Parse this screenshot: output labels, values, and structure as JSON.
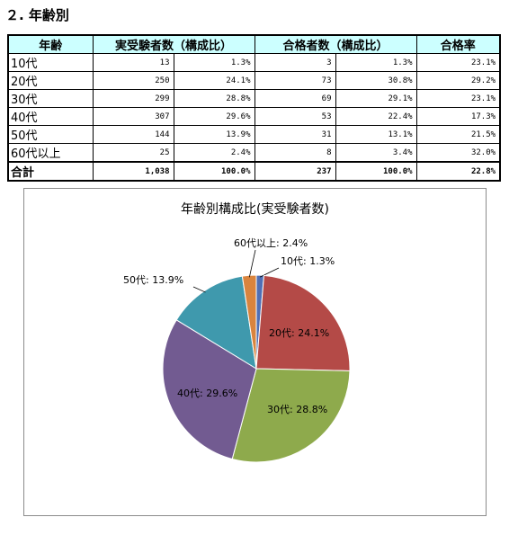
{
  "section_title": "２. 年齢別",
  "table": {
    "headers": [
      "年齢",
      "実受験者数（構成比）",
      "合格者数（構成比）",
      "合格率"
    ],
    "rows": [
      {
        "age": "10代",
        "examinees": "13",
        "examinees_ratio": "1.3%",
        "passers": "3",
        "passers_ratio": "1.3%",
        "pass_rate": "23.1%"
      },
      {
        "age": "20代",
        "examinees": "250",
        "examinees_ratio": "24.1%",
        "passers": "73",
        "passers_ratio": "30.8%",
        "pass_rate": "29.2%"
      },
      {
        "age": "30代",
        "examinees": "299",
        "examinees_ratio": "28.8%",
        "passers": "69",
        "passers_ratio": "29.1%",
        "pass_rate": "23.1%"
      },
      {
        "age": "40代",
        "examinees": "307",
        "examinees_ratio": "29.6%",
        "passers": "53",
        "passers_ratio": "22.4%",
        "pass_rate": "17.3%"
      },
      {
        "age": "50代",
        "examinees": "144",
        "examinees_ratio": "13.9%",
        "passers": "31",
        "passers_ratio": "13.1%",
        "pass_rate": "21.5%"
      },
      {
        "age": "60代以上",
        "examinees": "25",
        "examinees_ratio": "2.4%",
        "passers": "8",
        "passers_ratio": "3.4%",
        "pass_rate": "32.0%"
      }
    ],
    "total": {
      "age": "合計",
      "examinees": "1,038",
      "examinees_ratio": "100.0%",
      "passers": "237",
      "passers_ratio": "100.0%",
      "pass_rate": "22.8%"
    }
  },
  "chart_data": {
    "type": "pie",
    "title": "年齢別構成比(実受験者数)",
    "slices": [
      {
        "label": "10代",
        "value": 1.3,
        "display": "10代: 1.3%",
        "color": "#4f6fb5"
      },
      {
        "label": "20代",
        "value": 24.1,
        "display": "20代: 24.1%",
        "color": "#b44a47"
      },
      {
        "label": "30代",
        "value": 28.8,
        "display": "30代: 28.8%",
        "color": "#8eaa4c"
      },
      {
        "label": "40代",
        "value": 29.6,
        "display": "40代: 29.6%",
        "color": "#725b91"
      },
      {
        "label": "50代",
        "value": 13.9,
        "display": "50代: 13.9%",
        "color": "#3f99ad"
      },
      {
        "label": "60代以上",
        "value": 2.4,
        "display": "60代以上: 2.4%",
        "color": "#d9843e"
      }
    ]
  }
}
